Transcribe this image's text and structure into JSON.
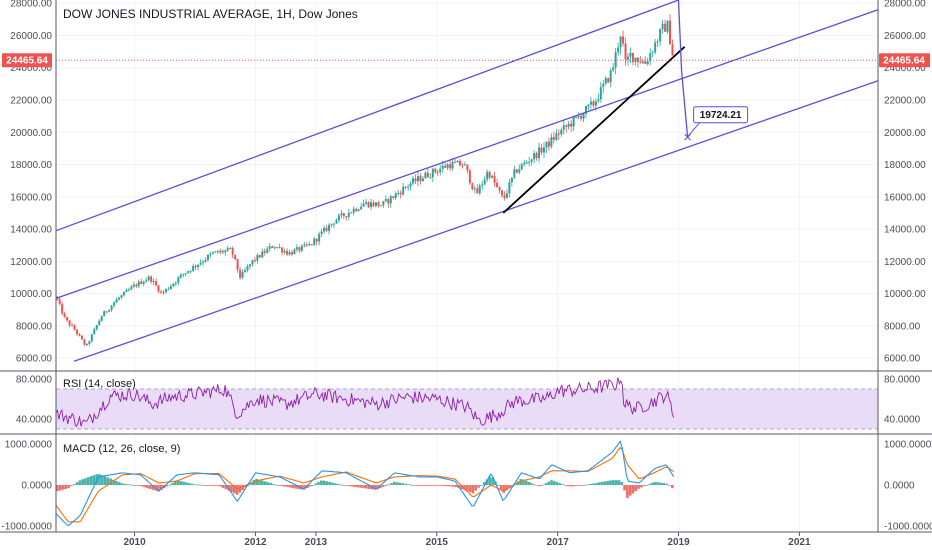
{
  "title": "DOW JONES INDUSTRIAL AVERAGE, 1H, Dow Jones",
  "current_price_label": "24465.64",
  "target_label": "19724.21",
  "colors": {
    "up": "#26a69a",
    "down": "#ef5350",
    "channel": "#5b4fd9",
    "trendline": "#000000",
    "rsi_line": "#8e1fa6",
    "rsi_band": "#e9dcf7",
    "macd_line": "#2196f3",
    "signal_line": "#ff6d00",
    "price_tag": "#ef5350",
    "axis_text": "#4a4e59",
    "grid": "#f0f3fa",
    "pane_border": "#555a66"
  },
  "chart_data": [
    {
      "type": "candlestick",
      "pane": "price",
      "title": "DOW JONES INDUSTRIAL AVERAGE, 1H, Dow Jones",
      "x_tick_labels": [
        "2010",
        "2012",
        "2013",
        "2015",
        "2017",
        "2019",
        "2021"
      ],
      "x_ticks_year": [
        2010,
        2012,
        2013,
        2015,
        2017,
        2019,
        2021
      ],
      "x_range_year": [
        2008.7,
        2022.3
      ],
      "y_tick_labels": [
        "28000.00",
        "26000.00",
        "24000.00",
        "22000.00",
        "20000.00",
        "18000.00",
        "16000.00",
        "14000.00",
        "12000.00",
        "10000.00",
        "8000.00",
        "6000.00"
      ],
      "y_ticks": [
        28000,
        26000,
        24000,
        22000,
        20000,
        18000,
        16000,
        14000,
        12000,
        10000,
        8000,
        6000
      ],
      "ylim": [
        5200,
        28200
      ],
      "grid": true,
      "price_path": [
        [
          2008.7,
          9800
        ],
        [
          2008.85,
          8400
        ],
        [
          2009.0,
          7800
        ],
        [
          2009.2,
          6700
        ],
        [
          2009.45,
          8600
        ],
        [
          2009.7,
          9600
        ],
        [
          2010.0,
          10500
        ],
        [
          2010.25,
          11000
        ],
        [
          2010.45,
          10000
        ],
        [
          2010.8,
          11200
        ],
        [
          2011.3,
          12500
        ],
        [
          2011.6,
          12700
        ],
        [
          2011.75,
          11000
        ],
        [
          2011.95,
          12000
        ],
        [
          2012.3,
          13000
        ],
        [
          2012.55,
          12500
        ],
        [
          2012.9,
          13000
        ],
        [
          2013.3,
          14500
        ],
        [
          2013.8,
          15600
        ],
        [
          2014.1,
          15500
        ],
        [
          2014.55,
          16800
        ],
        [
          2014.8,
          17300
        ],
        [
          2015.2,
          18000
        ],
        [
          2015.45,
          18000
        ],
        [
          2015.65,
          16100
        ],
        [
          2015.85,
          17600
        ],
        [
          2016.1,
          15800
        ],
        [
          2016.3,
          17600
        ],
        [
          2016.6,
          18500
        ],
        [
          2016.85,
          19300
        ],
        [
          2017.0,
          19900
        ],
        [
          2017.3,
          20800
        ],
        [
          2017.6,
          21800
        ],
        [
          2017.9,
          23800
        ],
        [
          2018.05,
          26300
        ],
        [
          2018.12,
          24200
        ],
        [
          2018.2,
          24800
        ],
        [
          2018.45,
          24300
        ],
        [
          2018.75,
          26500
        ],
        [
          2018.82,
          26600
        ],
        [
          2018.92,
          24465
        ]
      ],
      "series": [
        {
          "kind": "channel-line",
          "points": [
            [
              2008.7,
              13900
            ],
            [
              2019.0,
              28200
            ]
          ]
        },
        {
          "kind": "channel-line",
          "points": [
            [
              2008.7,
              9700
            ],
            [
              2022.3,
              27600
            ]
          ]
        },
        {
          "kind": "channel-line",
          "points": [
            [
              2009.0,
              5800
            ],
            [
              2022.3,
              23200
            ]
          ]
        },
        {
          "kind": "trendline",
          "points": [
            [
              2016.1,
              15000
            ],
            [
              2019.1,
              25300
            ]
          ]
        },
        {
          "kind": "projection",
          "points": [
            [
              2019.0,
              28200
            ],
            [
              2019.05,
              23800
            ],
            [
              2019.15,
              19700
            ]
          ]
        }
      ],
      "current_price": 24465.64,
      "annotations": [
        {
          "text": "19724.21",
          "x": 2019.15,
          "y": 19724.21
        }
      ]
    },
    {
      "type": "line",
      "pane": "rsi",
      "title": "RSI (14, close)",
      "y_tick_labels": [
        "80.0000",
        "40.0000"
      ],
      "y_ticks": [
        80,
        40
      ],
      "ylim": [
        25,
        88
      ],
      "band": [
        30,
        70
      ],
      "path": [
        [
          2008.7,
          45
        ],
        [
          2009.0,
          40
        ],
        [
          2009.2,
          35
        ],
        [
          2009.6,
          63
        ],
        [
          2010.0,
          65
        ],
        [
          2010.3,
          55
        ],
        [
          2010.6,
          62
        ],
        [
          2011.0,
          65
        ],
        [
          2011.5,
          70
        ],
        [
          2011.7,
          45
        ],
        [
          2012.0,
          60
        ],
        [
          2012.5,
          55
        ],
        [
          2013.0,
          65
        ],
        [
          2013.5,
          60
        ],
        [
          2014.0,
          55
        ],
        [
          2014.5,
          62
        ],
        [
          2015.0,
          60
        ],
        [
          2015.5,
          52
        ],
        [
          2015.7,
          38
        ],
        [
          2016.0,
          45
        ],
        [
          2016.3,
          58
        ],
        [
          2016.8,
          60
        ],
        [
          2017.0,
          68
        ],
        [
          2017.5,
          70
        ],
        [
          2018.0,
          75
        ],
        [
          2018.05,
          85
        ],
        [
          2018.1,
          55
        ],
        [
          2018.3,
          50
        ],
        [
          2018.6,
          58
        ],
        [
          2018.8,
          65
        ],
        [
          2018.92,
          44
        ]
      ]
    },
    {
      "type": "line",
      "pane": "macd",
      "title": "MACD (12, 26, close, 9)",
      "y_tick_labels": [
        "1000.0000",
        "0.0000",
        "-1000.0000"
      ],
      "y_ticks": [
        1000,
        0,
        -1000
      ],
      "ylim": [
        -1150,
        1250
      ],
      "series": [
        {
          "name": "MACD",
          "path": [
            [
              2008.7,
              -700
            ],
            [
              2008.9,
              -1000
            ],
            [
              2009.1,
              -750
            ],
            [
              2009.4,
              200
            ],
            [
              2009.8,
              300
            ],
            [
              2010.1,
              250
            ],
            [
              2010.4,
              -150
            ],
            [
              2010.7,
              250
            ],
            [
              2011.0,
              300
            ],
            [
              2011.4,
              250
            ],
            [
              2011.7,
              -400
            ],
            [
              2012.0,
              300
            ],
            [
              2012.4,
              200
            ],
            [
              2012.8,
              -100
            ],
            [
              2013.1,
              350
            ],
            [
              2013.5,
              300
            ],
            [
              2014.0,
              -100
            ],
            [
              2014.3,
              300
            ],
            [
              2014.7,
              200
            ],
            [
              2015.0,
              200
            ],
            [
              2015.3,
              100
            ],
            [
              2015.6,
              -550
            ],
            [
              2015.9,
              300
            ],
            [
              2016.1,
              -400
            ],
            [
              2016.4,
              300
            ],
            [
              2016.7,
              150
            ],
            [
              2016.9,
              500
            ],
            [
              2017.2,
              300
            ],
            [
              2017.5,
              350
            ],
            [
              2017.9,
              800
            ],
            [
              2018.05,
              1100
            ],
            [
              2018.15,
              100
            ],
            [
              2018.35,
              50
            ],
            [
              2018.6,
              400
            ],
            [
              2018.8,
              500
            ],
            [
              2018.92,
              200
            ]
          ]
        },
        {
          "name": "Signal",
          "path": [
            [
              2008.7,
              -500
            ],
            [
              2008.9,
              -900
            ],
            [
              2009.1,
              -900
            ],
            [
              2009.4,
              -150
            ],
            [
              2009.8,
              250
            ],
            [
              2010.1,
              280
            ],
            [
              2010.4,
              50
            ],
            [
              2010.7,
              100
            ],
            [
              2011.0,
              280
            ],
            [
              2011.4,
              280
            ],
            [
              2011.7,
              -100
            ],
            [
              2012.0,
              100
            ],
            [
              2012.4,
              220
            ],
            [
              2012.8,
              50
            ],
            [
              2013.1,
              200
            ],
            [
              2013.5,
              320
            ],
            [
              2014.0,
              50
            ],
            [
              2014.3,
              200
            ],
            [
              2014.7,
              230
            ],
            [
              2015.0,
              220
            ],
            [
              2015.3,
              150
            ],
            [
              2015.6,
              -300
            ],
            [
              2015.9,
              0
            ],
            [
              2016.1,
              -150
            ],
            [
              2016.4,
              100
            ],
            [
              2016.7,
              200
            ],
            [
              2016.9,
              350
            ],
            [
              2017.2,
              350
            ],
            [
              2017.5,
              330
            ],
            [
              2017.9,
              650
            ],
            [
              2018.05,
              950
            ],
            [
              2018.15,
              500
            ],
            [
              2018.35,
              150
            ],
            [
              2018.6,
              300
            ],
            [
              2018.8,
              450
            ],
            [
              2018.92,
              330
            ]
          ]
        }
      ]
    }
  ]
}
